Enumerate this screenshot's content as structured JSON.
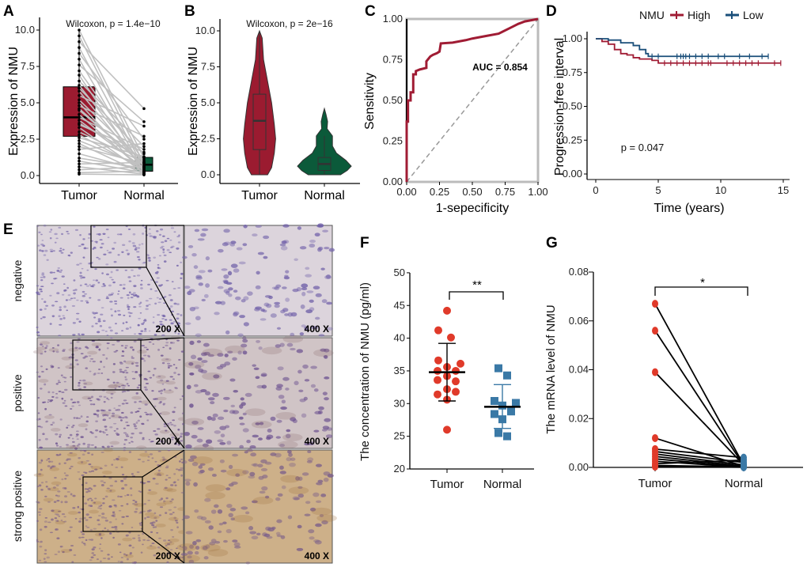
{
  "colors": {
    "tumor": "#9b1b30",
    "normal": "#0b5a3a",
    "roc": "#a01c34",
    "km_high": "#a01c34",
    "km_low": "#1a4f7a",
    "f_tumor": "#e03a2a",
    "f_normal": "#3a79a6",
    "paired_line": "#c0c0c0"
  },
  "panels": {
    "A": "A",
    "B": "B",
    "C": "C",
    "D": "D",
    "E": "E",
    "F": "F",
    "G": "G"
  },
  "chart_data": [
    {
      "panel": "A",
      "type": "box",
      "title": "Wilcoxon, p = 1.4e−10",
      "ylabel": "Expression of NMU",
      "categories": [
        "Tumor",
        "Normal"
      ],
      "yticks": [
        "0.0",
        "2.5",
        "5.0",
        "7.5",
        "10.0"
      ],
      "ylim": [
        0,
        10
      ],
      "box": {
        "Tumor": {
          "q1": 2.7,
          "median": 4.0,
          "q3": 6.1
        },
        "Normal": {
          "q1": 0.3,
          "median": 0.75,
          "q3": 1.25
        }
      },
      "paired": {
        "Tumor": [
          10,
          9.6,
          9.2,
          8.8,
          8.4,
          8.0,
          7.6,
          7.2,
          6.9,
          6.5,
          6.2,
          6.0,
          5.8,
          5.5,
          5.2,
          5.0,
          4.8,
          4.5,
          4.2,
          4.0,
          3.8,
          3.6,
          3.3,
          3.0,
          2.8,
          2.6,
          2.4,
          2.2,
          2.0,
          1.8,
          1.5,
          1.2,
          1.0,
          0.8,
          0.6,
          0.4,
          0.2,
          0.1,
          3.5,
          4.6
        ],
        "Normal": [
          1.2,
          0.8,
          4.6,
          0.5,
          2.5,
          0.3,
          3.7,
          1.0,
          0.2,
          2.0,
          0.6,
          1.5,
          0.4,
          3.4,
          0.9,
          0.1,
          2.7,
          0.7,
          0.3,
          1.8,
          0.5,
          1.1,
          0.2,
          0.9,
          0.4,
          1.3,
          0.6,
          0.1,
          0.8,
          2.2,
          0.3,
          0.5,
          0.2,
          0.9,
          0.1,
          0.6,
          0.3,
          0.05,
          1.6,
          0.7
        ]
      }
    },
    {
      "panel": "B",
      "type": "violin",
      "title": "Wilcoxon, p = 2e−16",
      "ylabel": "Expression of NMU",
      "categories": [
        "Tumor",
        "Normal"
      ],
      "yticks": [
        "0.0",
        "2.5",
        "5.0",
        "7.5",
        "10.0"
      ],
      "ylim": [
        0,
        10
      ],
      "box": {
        "Tumor": {
          "min": 0,
          "q1": 1.75,
          "median": 3.75,
          "q3": 5.6,
          "max": 10
        },
        "Normal": {
          "min": 0,
          "q1": 0.3,
          "median": 0.75,
          "q3": 1.2,
          "max": 2.7
        }
      },
      "density": {
        "Tumor": [
          [
            0,
            0.3
          ],
          [
            0.5,
            0.45
          ],
          [
            1.5,
            0.55
          ],
          [
            2.5,
            0.6
          ],
          [
            3.5,
            0.55
          ],
          [
            5,
            0.45
          ],
          [
            6.5,
            0.3
          ],
          [
            8,
            0.15
          ],
          [
            9.5,
            0.1
          ],
          [
            10,
            0
          ]
        ],
        "Normal": [
          [
            0,
            0.6
          ],
          [
            0.3,
            0.85
          ],
          [
            0.6,
            1.0
          ],
          [
            1,
            0.8
          ],
          [
            1.5,
            0.45
          ],
          [
            2,
            0.3
          ],
          [
            2.7,
            0.3
          ],
          [
            3.2,
            0.1
          ],
          [
            3.7,
            0.12
          ],
          [
            4.2,
            0.06
          ],
          [
            4.6,
            0
          ]
        ]
      }
    },
    {
      "panel": "C",
      "type": "line",
      "xlabel": "1-sepecificity",
      "ylabel": "Sensitivity",
      "annotation": "AUC =  0.854",
      "xticks": [
        "0.00",
        "0.25",
        "0.50",
        "0.75",
        "1.00"
      ],
      "yticks": [
        "0.00",
        "0.25",
        "0.50",
        "0.75",
        "1.00"
      ],
      "xlim": [
        0,
        1
      ],
      "ylim": [
        0,
        1
      ],
      "points": [
        [
          0,
          0
        ],
        [
          0,
          0.37
        ],
        [
          0.01,
          0.37
        ],
        [
          0.01,
          0.5
        ],
        [
          0.03,
          0.5
        ],
        [
          0.03,
          0.55
        ],
        [
          0.05,
          0.55
        ],
        [
          0.05,
          0.66
        ],
        [
          0.07,
          0.66
        ],
        [
          0.07,
          0.68
        ],
        [
          0.1,
          0.69
        ],
        [
          0.15,
          0.7
        ],
        [
          0.15,
          0.74
        ],
        [
          0.18,
          0.77
        ],
        [
          0.2,
          0.78
        ],
        [
          0.23,
          0.79
        ],
        [
          0.25,
          0.8
        ],
        [
          0.26,
          0.85
        ],
        [
          0.35,
          0.855
        ],
        [
          0.45,
          0.87
        ],
        [
          0.5,
          0.88
        ],
        [
          0.6,
          0.895
        ],
        [
          0.7,
          0.91
        ],
        [
          0.8,
          0.95
        ],
        [
          0.85,
          0.97
        ],
        [
          0.9,
          0.985
        ],
        [
          1,
          1
        ]
      ]
    },
    {
      "panel": "D",
      "type": "line",
      "xlabel": "Time (years)",
      "ylabel": "Progression-free interval",
      "legend_title": "NMU",
      "legend_position": "top",
      "annotation": "p = 0.047",
      "xticks": [
        "0",
        "5",
        "10",
        "15"
      ],
      "yticks": [
        "0.00",
        "0.25",
        "0.50",
        "0.75",
        "1.00"
      ],
      "xlim": [
        0,
        15
      ],
      "ylim": [
        0,
        1
      ],
      "series": [
        {
          "name": "High",
          "steps": [
            [
              0,
              1
            ],
            [
              0.5,
              0.98
            ],
            [
              1,
              0.96
            ],
            [
              1.5,
              0.92
            ],
            [
              2,
              0.89
            ],
            [
              2.5,
              0.88
            ],
            [
              3,
              0.86
            ],
            [
              3.5,
              0.85
            ],
            [
              4.5,
              0.84
            ],
            [
              5,
              0.82
            ],
            [
              14.8,
              0.82
            ]
          ],
          "censored": [
            5.5,
            6,
            6.5,
            7,
            7.5,
            8,
            8.5,
            9,
            9.2,
            10.5,
            11,
            11.5,
            12,
            12.5,
            13,
            14.3,
            14.8
          ]
        },
        {
          "name": "Low",
          "steps": [
            [
              0,
              1
            ],
            [
              1,
              0.99
            ],
            [
              2,
              0.97
            ],
            [
              3,
              0.95
            ],
            [
              3.5,
              0.92
            ],
            [
              4,
              0.89
            ],
            [
              4.2,
              0.87
            ],
            [
              13.8,
              0.87
            ]
          ],
          "censored": [
            4.5,
            5,
            6.5,
            6.8,
            7,
            7.2,
            7.5,
            8,
            8.5,
            9,
            9.8,
            10.3,
            11.5,
            12.3,
            13.3,
            13.8
          ]
        }
      ]
    },
    {
      "panel": "F",
      "type": "scatter",
      "ylabel": "The concentration of NMU (pg/ml)",
      "categories": [
        "Tumor",
        "Normal"
      ],
      "yticks": [
        "20",
        "25",
        "30",
        "35",
        "40",
        "45",
        "50"
      ],
      "ylim": [
        20,
        50
      ],
      "significance": "**",
      "series": [
        {
          "category": "Tumor",
          "values": [
            44.2,
            41.2,
            40.1,
            36.6,
            36.1,
            35.6,
            35.0,
            35.0,
            34.2,
            33.6,
            33.4,
            32.2,
            31.8,
            31.4,
            30.6,
            26.0
          ],
          "mean": 34.8,
          "sd_low": 30.4,
          "sd_high": 39.2
        },
        {
          "category": "Normal",
          "values": [
            35.4,
            34.3,
            30.4,
            30.1,
            29.7,
            28.8,
            28.4,
            27.6,
            25.5,
            25.0
          ],
          "mean": 29.5,
          "sd_low": 26.2,
          "sd_high": 32.9
        }
      ]
    },
    {
      "panel": "G",
      "type": "paired",
      "ylabel": "The mRNA level of NMU",
      "categories": [
        "Tumor",
        "Normal"
      ],
      "yticks": [
        "0.00",
        "0.02",
        "0.04",
        "0.06",
        "0.08"
      ],
      "ylim": [
        0,
        0.08
      ],
      "significance": "*",
      "pairs": [
        [
          0.067,
          0.001
        ],
        [
          0.056,
          0.0008
        ],
        [
          0.039,
          0.001
        ],
        [
          0.012,
          0.0005
        ],
        [
          0.0075,
          0.004
        ],
        [
          0.0065,
          0.002
        ],
        [
          0.0055,
          0.001
        ],
        [
          0.0045,
          0.0005
        ],
        [
          0.0035,
          0.0002
        ],
        [
          0.0025,
          0.0001
        ],
        [
          0.0015,
          0.003
        ],
        [
          0.0008,
          0.0002
        ],
        [
          0.0003,
          0.0001
        ]
      ]
    }
  ],
  "ihc": {
    "rows": [
      {
        "label": "negative",
        "base": "#dcd4dc",
        "cell": "#6f5fa8"
      },
      {
        "label": "positive",
        "base": "#d0c4c6",
        "cell": "#6a4f8f"
      },
      {
        "label": "strong positive",
        "base": "#cdb089",
        "cell": "#7a5e8a"
      }
    ],
    "mag_low": "200 X",
    "mag_high": "400 X"
  }
}
